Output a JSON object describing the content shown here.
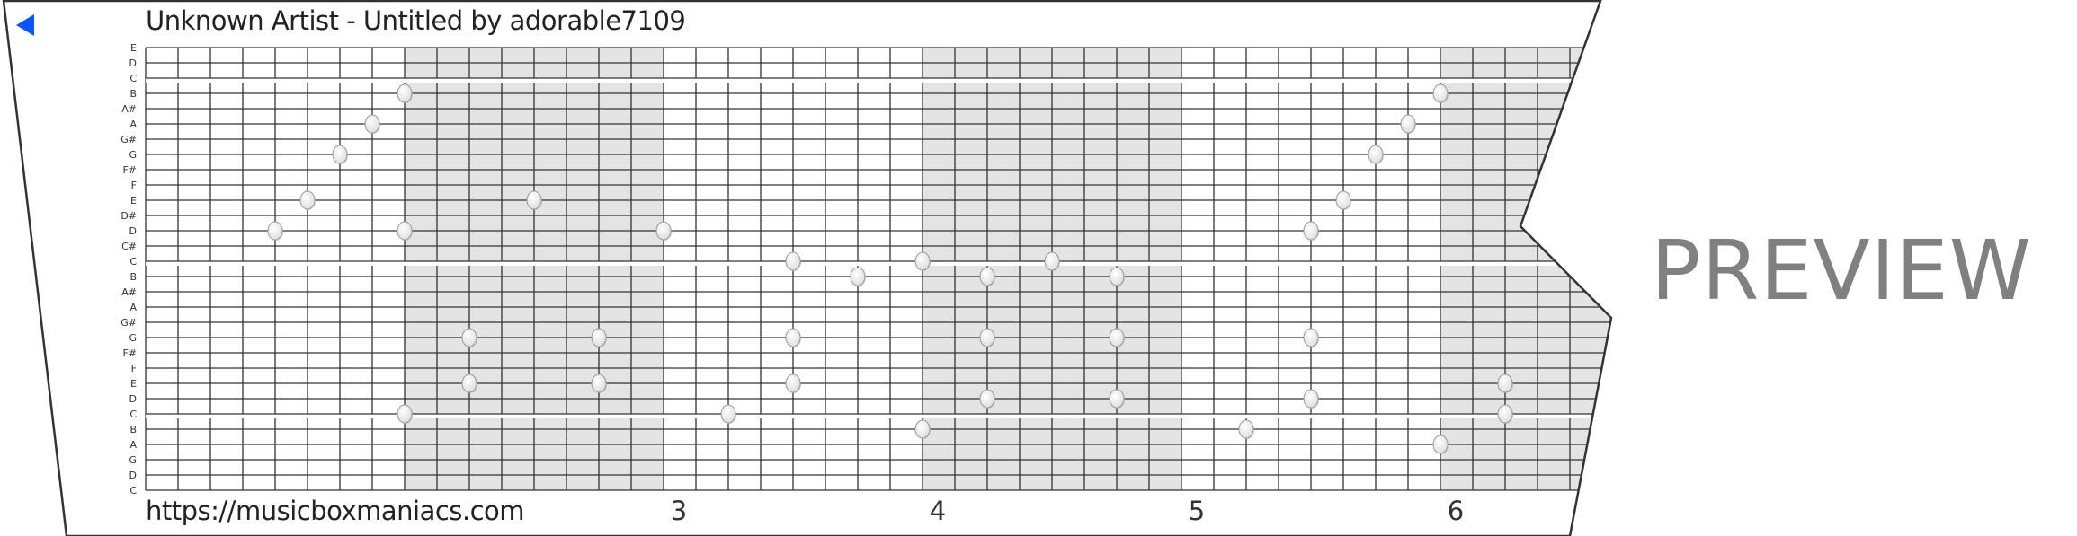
{
  "header": {
    "title": "Unknown Artist - Untitled by adorable7109",
    "back_icon": "back-triangle-icon",
    "accent_color": "#0a55ff"
  },
  "footer": {
    "url": "https://musicboxmaniacs.com",
    "measures": [
      "3",
      "4",
      "5",
      "6"
    ]
  },
  "watermark": "PREVIEW",
  "score": {
    "row_labels": [
      "E",
      "D",
      "C",
      "B",
      "A#",
      "A",
      "G#",
      "G",
      "F#",
      "F",
      "E",
      "D#",
      "D",
      "C#",
      "C",
      "B",
      "A#",
      "A",
      "G#",
      "G",
      "F#",
      "F",
      "E",
      "D",
      "C",
      "B",
      "A",
      "G",
      "D",
      "C"
    ],
    "shade_color": "#e4e4e4",
    "notes": [
      {
        "beat": 4,
        "row": 12
      },
      {
        "beat": 5,
        "row": 10
      },
      {
        "beat": 6,
        "row": 7
      },
      {
        "beat": 7,
        "row": 5
      },
      {
        "beat": 8,
        "row": 3
      },
      {
        "beat": 8,
        "row": 12
      },
      {
        "beat": 8,
        "row": 24
      },
      {
        "beat": 10,
        "row": 19
      },
      {
        "beat": 10,
        "row": 22
      },
      {
        "beat": 12,
        "row": 10
      },
      {
        "beat": 14,
        "row": 19
      },
      {
        "beat": 14,
        "row": 22
      },
      {
        "beat": 16,
        "row": 12
      },
      {
        "beat": 18,
        "row": 24
      },
      {
        "beat": 20,
        "row": 14
      },
      {
        "beat": 20,
        "row": 19
      },
      {
        "beat": 20,
        "row": 22
      },
      {
        "beat": 22,
        "row": 15
      },
      {
        "beat": 24,
        "row": 14
      },
      {
        "beat": 24,
        "row": 25
      },
      {
        "beat": 26,
        "row": 15
      },
      {
        "beat": 26,
        "row": 19
      },
      {
        "beat": 26,
        "row": 23
      },
      {
        "beat": 28,
        "row": 14
      },
      {
        "beat": 30,
        "row": 15
      },
      {
        "beat": 30,
        "row": 19
      },
      {
        "beat": 30,
        "row": 23
      },
      {
        "beat": 34,
        "row": 25
      },
      {
        "beat": 36,
        "row": 12
      },
      {
        "beat": 36,
        "row": 19
      },
      {
        "beat": 36,
        "row": 23
      },
      {
        "beat": 37,
        "row": 10
      },
      {
        "beat": 38,
        "row": 7
      },
      {
        "beat": 39,
        "row": 5
      },
      {
        "beat": 40,
        "row": 3
      },
      {
        "beat": 40,
        "row": 26
      },
      {
        "beat": 42,
        "row": 22
      },
      {
        "beat": 42,
        "row": 24
      }
    ]
  }
}
